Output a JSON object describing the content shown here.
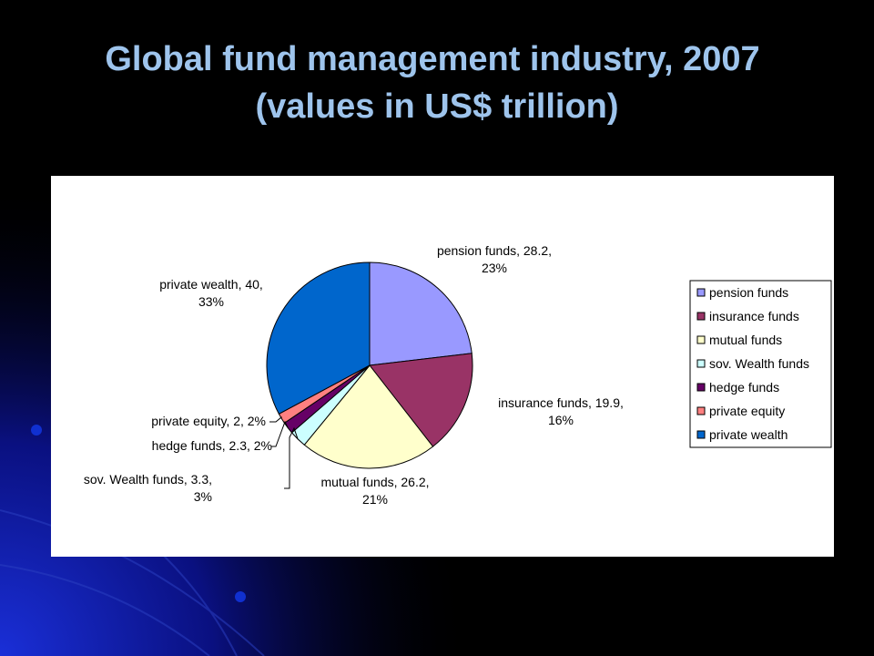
{
  "slide": {
    "title_line_1": "Global fund management industry, 2007",
    "title_line_2": "(values in US$ trillion)",
    "title_color": "#9ec4ec",
    "background": "#000000"
  },
  "chart_data": {
    "type": "pie",
    "title": "",
    "unit": "US$ trillion",
    "legend_placement": "right",
    "slices": [
      {
        "name": "pension funds",
        "value": 28.2,
        "percent": "23%",
        "label": "pension funds, 28.2,\n23%",
        "color": "#9999ff"
      },
      {
        "name": "insurance funds",
        "value": 19.9,
        "percent": "16%",
        "label": "insurance funds, 19.9,\n16%",
        "color": "#993366"
      },
      {
        "name": "mutual funds",
        "value": 26.2,
        "percent": "21%",
        "label": "mutual funds, 26.2,\n21%",
        "color": "#ffffcc"
      },
      {
        "name": "sov. Wealth funds",
        "value": 3.3,
        "percent": "3%",
        "label": "sov. Wealth funds, 3.3,\n3%",
        "color": "#ccffff"
      },
      {
        "name": "hedge funds",
        "value": 2.3,
        "percent": "2%",
        "label": "hedge funds, 2.3, 2%",
        "color": "#660066"
      },
      {
        "name": "private equity",
        "value": 2,
        "percent": "2%",
        "label": "private equity, 2, 2%",
        "color": "#ff8080"
      },
      {
        "name": "private wealth",
        "value": 40,
        "percent": "33%",
        "label": "private wealth, 40,\n33%",
        "color": "#0066cc"
      }
    ]
  }
}
